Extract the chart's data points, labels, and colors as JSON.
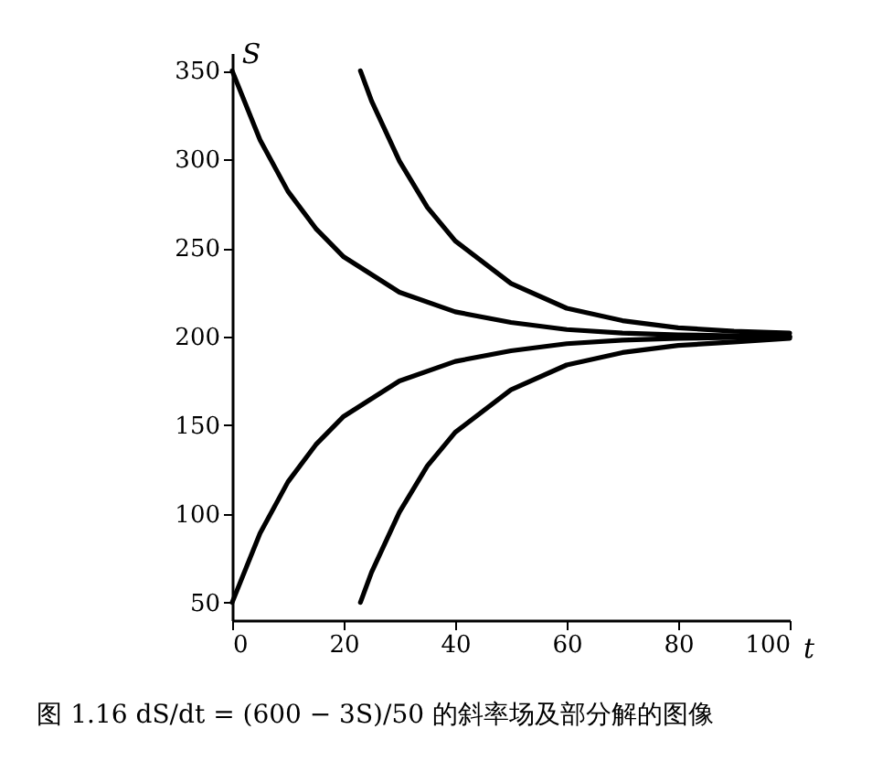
{
  "chart_data": {
    "type": "line",
    "xlabel": "t",
    "ylabel": "S",
    "annotations": [
      "图 1.16  dS/dt = (600 − 3S)/50 的斜率场及部分解的图像"
    ],
    "xlim": [
      0,
      100
    ],
    "ylim": [
      40,
      360
    ],
    "xticks": [
      0,
      20,
      40,
      60,
      80,
      100
    ],
    "yticks": [
      50,
      100,
      150,
      200,
      250,
      300,
      350
    ],
    "grid": false,
    "marker": "none",
    "line_style": "solid",
    "series": [
      {
        "color": "#000000",
        "x": [
          0,
          5,
          10,
          15,
          20,
          30,
          40,
          50,
          60,
          70,
          80,
          100
        ],
        "values": [
          350,
          311,
          282,
          261,
          245,
          225,
          214,
          208,
          204,
          202,
          201,
          200
        ]
      },
      {
        "color": "#000000",
        "x": [
          23,
          25,
          30,
          35,
          40,
          50,
          60,
          70,
          80,
          90,
          100
        ],
        "values": [
          350,
          333,
          299,
          273,
          254,
          230,
          216,
          209,
          205,
          203,
          202
        ]
      },
      {
        "color": "#000000",
        "x": [
          0,
          5,
          10,
          15,
          20,
          30,
          40,
          50,
          60,
          70,
          80,
          100
        ],
        "values": [
          50,
          89,
          118,
          139,
          155,
          175,
          186,
          192,
          196,
          198,
          199,
          200
        ]
      },
      {
        "color": "#000000",
        "x": [
          23,
          25,
          30,
          35,
          40,
          50,
          60,
          70,
          80,
          90,
          100
        ],
        "values": [
          50,
          67,
          101,
          127,
          146,
          170,
          184,
          191,
          195,
          197,
          199
        ]
      }
    ]
  }
}
